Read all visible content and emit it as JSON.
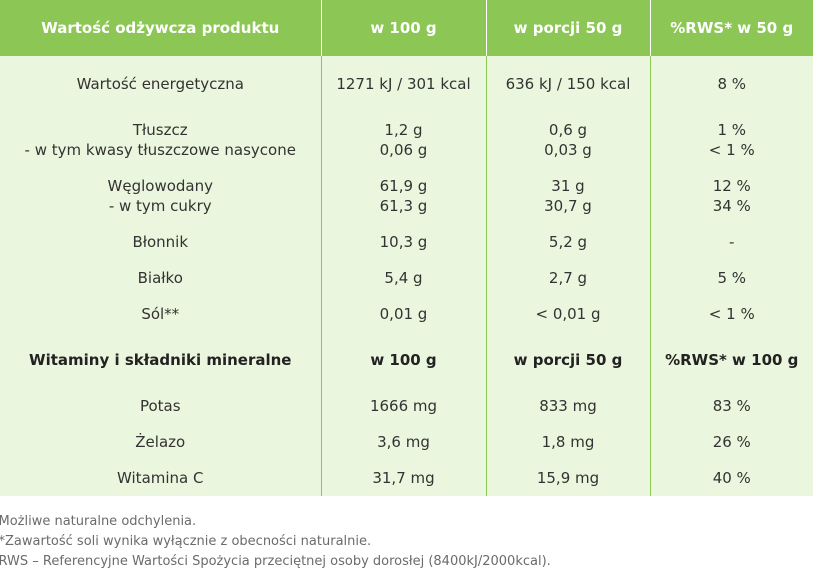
{
  "header": {
    "col1": "Wartość odżywcza produktu",
    "col2": "w 100 g",
    "col3": "w porcji 50 g",
    "col4": "%RWS* w 50 g"
  },
  "rows": [
    {
      "name": [
        "Wartość energetyczna"
      ],
      "per100": [
        "1271 kJ / 301 kcal"
      ],
      "per50": [
        "636 kJ / 150 kcal"
      ],
      "rws": [
        "8 %"
      ]
    },
    {
      "name": [
        "Tłuszcz",
        "- w tym kwasy tłuszczowe nasycone"
      ],
      "per100": [
        "1,2 g",
        "0,06 g"
      ],
      "per50": [
        "0,6 g",
        "0,03 g"
      ],
      "rws": [
        "1 %",
        "< 1 %"
      ]
    },
    {
      "name": [
        "Węglowodany",
        "- w tym cukry"
      ],
      "per100": [
        "61,9 g",
        "61,3 g"
      ],
      "per50": [
        "31 g",
        "30,7 g"
      ],
      "rws": [
        "12 %",
        "34 %"
      ]
    },
    {
      "name": [
        "Błonnik"
      ],
      "per100": [
        "10,3 g"
      ],
      "per50": [
        "5,2 g"
      ],
      "rws": [
        "-"
      ]
    },
    {
      "name": [
        "Białko"
      ],
      "per100": [
        "5,4 g"
      ],
      "per50": [
        "2,7 g"
      ],
      "rws": [
        "5 %"
      ]
    },
    {
      "name": [
        "Sól**"
      ],
      "per100": [
        "0,01 g"
      ],
      "per50": [
        "< 0,01 g"
      ],
      "rws": [
        "< 1 %"
      ]
    }
  ],
  "subheader": {
    "col1": "Witaminy i składniki mineralne",
    "col2": "w 100 g",
    "col3": "w porcji 50 g",
    "col4": "%RWS* w 100 g"
  },
  "minerals": [
    {
      "name": "Potas",
      "per100": "1666 mg",
      "per50": "833 mg",
      "rws": "83 %"
    },
    {
      "name": "Żelazo",
      "per100": "3,6 mg",
      "per50": "1,8 mg",
      "rws": "26 %"
    },
    {
      "name": "Witamina C",
      "per100": "31,7 mg",
      "per50": "15,9 mg",
      "rws": "40 %"
    }
  ],
  "footnotes": [
    "*Możliwe naturalne odchylenia.",
    "**Zawartość soli wynika wyłącznie z obecności naturalnie.",
    "*RWS – Referencyjne Wartości Spożycia przeciętnej osoby dorosłej (8400kJ/2000kcal)."
  ],
  "colors": {
    "header_bg": "#8cc756",
    "cell_bg": "#eaf6dd",
    "text": "#333333",
    "footnote_text": "#6b6b6b"
  }
}
